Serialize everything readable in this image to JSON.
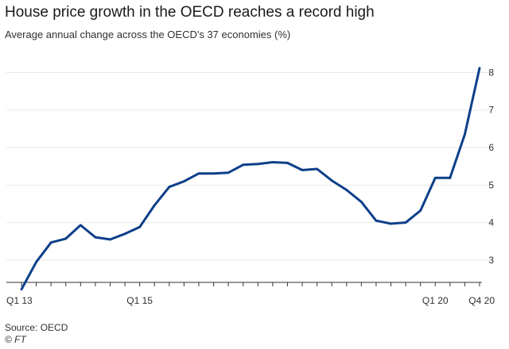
{
  "title": "House price growth in the OECD reaches a record high",
  "subtitle": "Average annual change across the OECD's 37 economies (%)",
  "source": "Source: OECD",
  "credit": "© FT",
  "colors": {
    "line": "#0d3f8a",
    "grid": "#e8e8e8",
    "axis": "#333333",
    "text": "#33302e"
  },
  "chart_data": {
    "type": "line",
    "title": "House price growth in the OECD reaches a record high",
    "subtitle": "Average annual change across the OECD's 37 economies (%)",
    "xlabel": "",
    "ylabel": "",
    "x": [
      "Q1 13",
      "Q2 13",
      "Q3 13",
      "Q4 13",
      "Q1 14",
      "Q2 14",
      "Q3 14",
      "Q4 14",
      "Q1 15",
      "Q2 15",
      "Q3 15",
      "Q4 15",
      "Q1 16",
      "Q2 16",
      "Q3 16",
      "Q4 16",
      "Q1 17",
      "Q2 17",
      "Q3 17",
      "Q4 17",
      "Q1 18",
      "Q2 18",
      "Q3 18",
      "Q4 18",
      "Q1 19",
      "Q2 19",
      "Q3 19",
      "Q4 19",
      "Q1 20",
      "Q2 20",
      "Q3 20",
      "Q4 20"
    ],
    "x_tick_labels": [
      {
        "index": 0,
        "label": "Q1 13"
      },
      {
        "index": 8,
        "label": "Q1 15"
      },
      {
        "index": 28,
        "label": "Q1 20"
      },
      {
        "index": 31,
        "label": "Q4 20"
      }
    ],
    "y_ticks": [
      3,
      4,
      5,
      6,
      7,
      8
    ],
    "ylim": [
      2.3,
      8.2
    ],
    "grid": true,
    "y_axis_side": "right",
    "series": [
      {
        "values": [
          2.22,
          2.95,
          3.47,
          3.57,
          3.93,
          3.61,
          3.55,
          3.7,
          3.88,
          4.46,
          4.95,
          5.1,
          5.31,
          5.31,
          5.33,
          5.54,
          5.56,
          5.61,
          5.59,
          5.4,
          5.43,
          5.12,
          4.87,
          4.55,
          4.05,
          3.97,
          4.0,
          4.32,
          5.19,
          5.19,
          6.35,
          8.12
        ]
      }
    ]
  }
}
